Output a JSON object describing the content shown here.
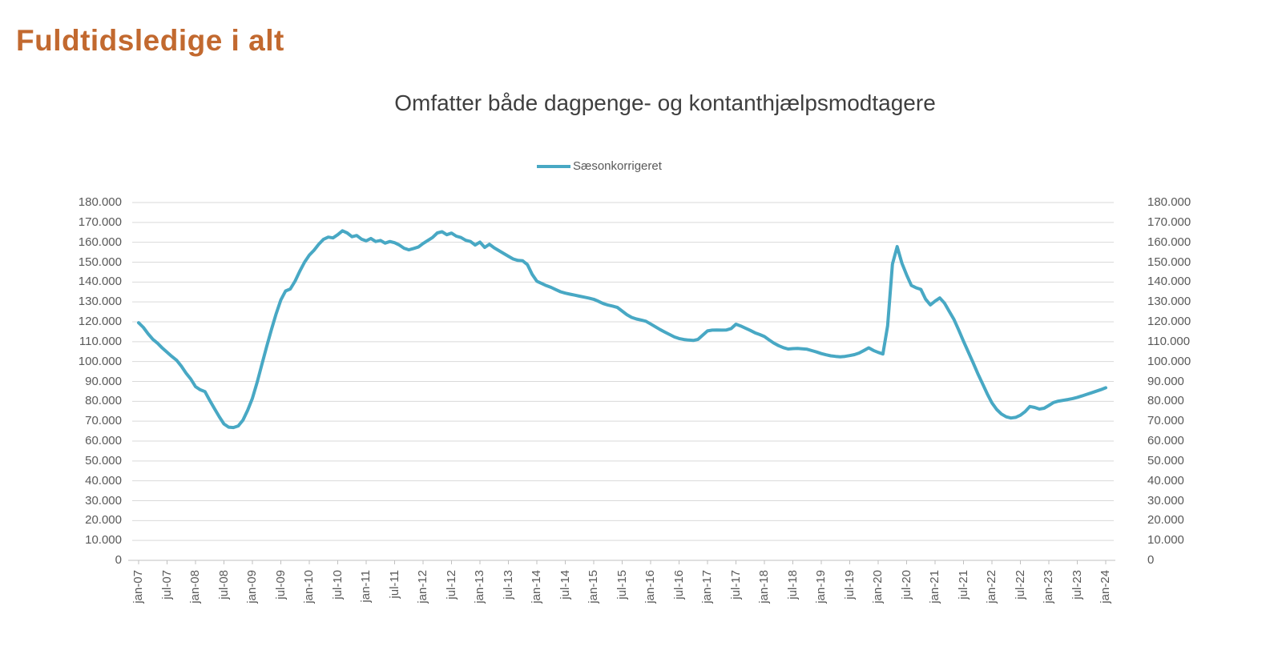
{
  "title": "Fuldtidsledige i alt",
  "subtitle": "Omfatter både dagpenge- og kontanthjælpsmodtagere",
  "legend": {
    "label": "Sæsonkorrigeret"
  },
  "colors": {
    "title": "#C2692F",
    "subtitle": "#3F3F3F",
    "axis_text": "#595959",
    "line": "#48A8C4",
    "gridline": "#D9D9D9",
    "axis_line": "#C0C0C0"
  },
  "chart_data": {
    "type": "line",
    "title": "Omfatter både dagpenge- og kontanthjælpsmodtagere",
    "xlabel": "",
    "ylabel": "",
    "ylim": [
      0,
      180000
    ],
    "y_step": 10000,
    "grid": "horizontal",
    "legend_position": "top-center",
    "dual_y_axis": true,
    "x_frequency": "monthly",
    "x_start": "jan-07",
    "x_end": "jan-24",
    "x_tick_labels": [
      "jan-07",
      "jul-07",
      "jan-08",
      "jul-08",
      "jan-09",
      "jul-09",
      "jan-10",
      "jul-10",
      "jan-11",
      "jul-11",
      "jan-12",
      "jul-12",
      "jan-13",
      "jul-13",
      "jan-14",
      "jul-14",
      "jan-15",
      "jul-15",
      "jan-16",
      "jul-16",
      "jan-17",
      "jul-17",
      "jan-18",
      "jul-18",
      "jan-19",
      "jul-19",
      "jan-20",
      "jul-20",
      "jan-21",
      "jul-21",
      "jan-22",
      "jul-22",
      "jan-23",
      "jul-23",
      "jan-24"
    ],
    "y_tick_labels": [
      "0",
      "10.000",
      "20.000",
      "30.000",
      "40.000",
      "50.000",
      "60.000",
      "70.000",
      "80.000",
      "90.000",
      "100.000",
      "110.000",
      "120.000",
      "130.000",
      "140.000",
      "150.000",
      "160.000",
      "170.000",
      "180.000"
    ],
    "series": [
      {
        "name": "Sæsonkorrigeret",
        "values": [
          119500,
          117200,
          114000,
          111200,
          109200,
          106800,
          104700,
          102600,
          100700,
          97700,
          94200,
          91200,
          87400,
          85800,
          84900,
          80400,
          76300,
          72300,
          68600,
          67000,
          66800,
          67600,
          70500,
          75500,
          81500,
          89500,
          98500,
          107500,
          116000,
          124000,
          131000,
          135500,
          136500,
          140500,
          145500,
          150000,
          153500,
          156000,
          159000,
          161500,
          162600,
          162200,
          163800,
          165800,
          164700,
          162800,
          163400,
          161600,
          160700,
          161900,
          160400,
          160900,
          159600,
          160400,
          159800,
          158600,
          157000,
          156200,
          156900,
          157600,
          159400,
          160900,
          162400,
          164700,
          165300,
          163800,
          164600,
          163100,
          162400,
          161000,
          160400,
          158600,
          160100,
          157400,
          159000,
          157200,
          155800,
          154400,
          153000,
          151600,
          150900,
          150700,
          148800,
          143900,
          140400,
          139300,
          138200,
          137300,
          136200,
          135100,
          134400,
          133900,
          133400,
          132900,
          132400,
          131900,
          131300,
          130300,
          129200,
          128400,
          127900,
          127200,
          125400,
          123600,
          122200,
          121400,
          120900,
          120300,
          118900,
          117500,
          116100,
          114800,
          113600,
          112400,
          111600,
          111100,
          110800,
          110600,
          111200,
          113300,
          115400,
          115800,
          115900,
          115800,
          115900,
          116600,
          118800,
          117900,
          116800,
          115700,
          114500,
          113600,
          112600,
          110900,
          109300,
          108000,
          107000,
          106300,
          106500,
          106600,
          106400,
          106200,
          105500,
          104800,
          104000,
          103400,
          102900,
          102600,
          102400,
          102600,
          103000,
          103500,
          104300,
          105600,
          106900,
          105600,
          104600,
          103800,
          118000,
          149000,
          157800,
          149500,
          143600,
          138300,
          137100,
          136300,
          131400,
          128500,
          130400,
          132000,
          129400,
          125200,
          121100,
          115800,
          110200,
          104900,
          99600,
          94000,
          88900,
          83800,
          79200,
          75900,
          73600,
          72200,
          71600,
          71900,
          73000,
          74800,
          77400,
          76900,
          76100,
          76500,
          77900,
          79400,
          80100,
          80500,
          80900,
          81400,
          82000,
          82700,
          83500,
          84300,
          85100,
          85900,
          86800
        ]
      }
    ]
  }
}
